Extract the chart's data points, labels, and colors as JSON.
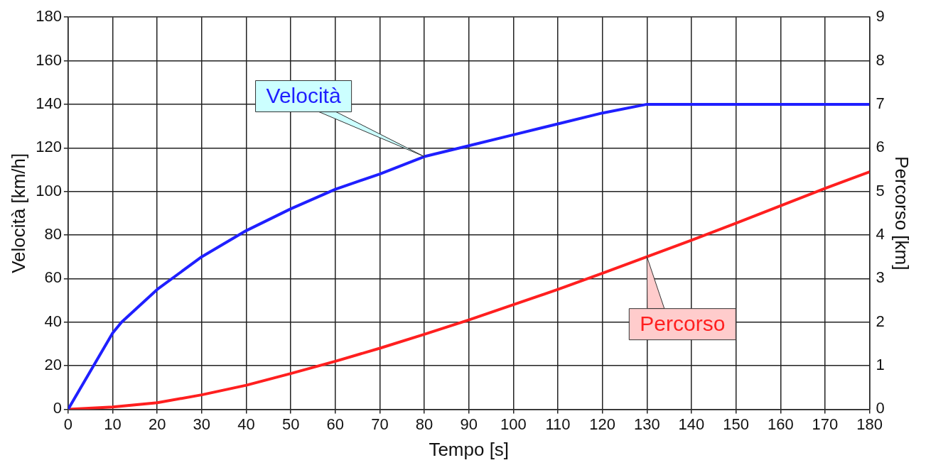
{
  "chart_data": {
    "type": "line",
    "xlabel": "Tempo [s]",
    "ylabel": "Velocità [km/h]",
    "y2label": "Percorso [km]",
    "xlim": [
      0,
      180
    ],
    "xticks": [
      0,
      10,
      20,
      30,
      40,
      50,
      60,
      70,
      80,
      90,
      100,
      110,
      120,
      130,
      140,
      150,
      160,
      170,
      180
    ],
    "ylim": [
      0,
      180
    ],
    "yticks": [
      0,
      20,
      40,
      60,
      80,
      100,
      120,
      140,
      160,
      180
    ],
    "y2lim": [
      0,
      9
    ],
    "y2ticks": [
      0,
      1,
      2,
      3,
      4,
      5,
      6,
      7,
      8,
      9
    ],
    "grid": true,
    "legend": false,
    "marker": "none",
    "line_style": "solid",
    "series": [
      {
        "name": "Velocità",
        "color": "#1f1fff",
        "x": [
          0,
          10,
          12,
          20,
          30,
          40,
          50,
          60,
          70,
          80,
          90,
          100,
          110,
          120,
          130,
          180
        ],
        "values": [
          0,
          35,
          40,
          55,
          70,
          82,
          92,
          101,
          108,
          116,
          121,
          126,
          131,
          136,
          140,
          140
        ]
      },
      {
        "name": "Percorso",
        "color": "#ff1f1f",
        "axis": "y2",
        "x": [
          0,
          10,
          20,
          30,
          40,
          50,
          60,
          70,
          80,
          90,
          100,
          110,
          120,
          130,
          140,
          150,
          160,
          170,
          180
        ],
        "values": [
          0,
          0.05,
          0.15,
          0.33,
          0.55,
          0.82,
          1.1,
          1.4,
          1.72,
          2.05,
          2.4,
          2.75,
          3.12,
          3.5,
          3.88,
          4.27,
          4.67,
          5.07,
          5.45
        ]
      }
    ]
  }
}
